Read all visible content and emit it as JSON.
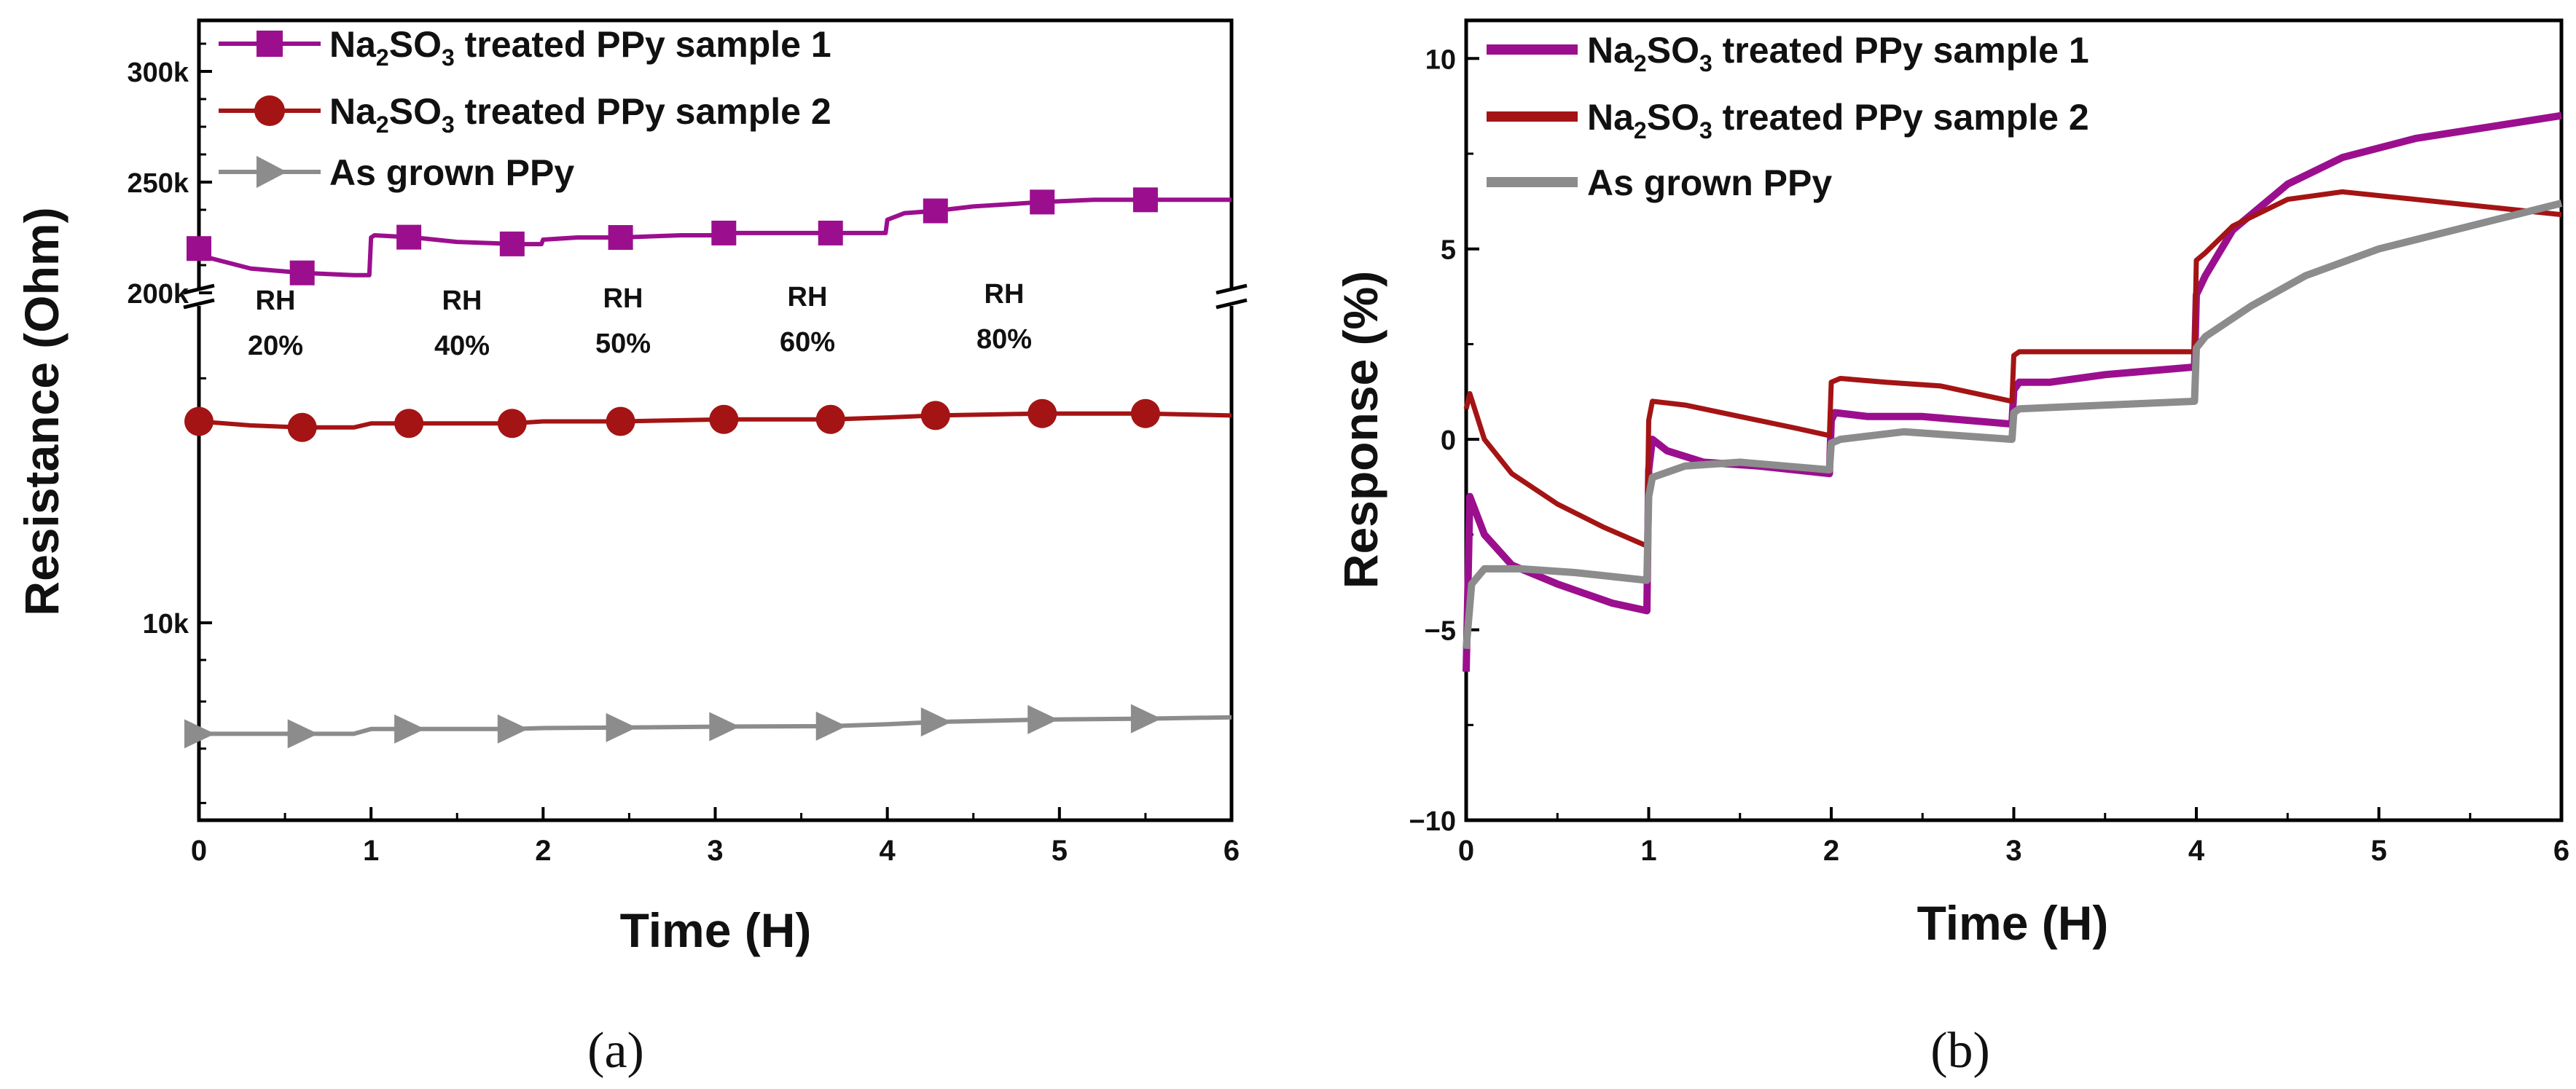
{
  "chart_data": [
    {
      "panel": "(a)",
      "type": "line",
      "xlabel": "Time (H)",
      "ylabel": "Resistance (Ohm)",
      "xlim": [
        0,
        6
      ],
      "xticks": [
        "0",
        "1",
        "2",
        "3",
        "4",
        "5",
        "6"
      ],
      "y_axis": {
        "broken": true,
        "upper_segment": {
          "range": [
            200000,
            330000
          ],
          "ticks": [
            "200k",
            "250k",
            "300k"
          ],
          "tick_values": [
            200000,
            250000,
            300000
          ]
        },
        "lower_segment": {
          "scale": "log",
          "ticks": [
            "10k"
          ],
          "tick_values": [
            10000
          ]
        }
      },
      "annotations": [
        {
          "line1": "RH",
          "line2": "20%"
        },
        {
          "line1": "RH",
          "line2": "40%"
        },
        {
          "line1": "RH",
          "line2": "50%"
        },
        {
          "line1": "RH",
          "line2": "60%"
        },
        {
          "line1": "RH",
          "line2": "80%"
        }
      ],
      "legend": "top-left",
      "series": [
        {
          "name": "Na2SO3 treated PPy sample 1",
          "color": "#9b0f8e",
          "marker": "square",
          "segment": "upper",
          "x": [
            0,
            0.05,
            0.3,
            0.6,
            0.9,
            0.99,
            1.0,
            1.02,
            1.25,
            1.5,
            1.85,
            1.99,
            2.0,
            2.2,
            2.45,
            2.8,
            2.99,
            3.0,
            3.05,
            3.4,
            3.67,
            3.95,
            3.99,
            4.0,
            4.1,
            4.28,
            4.5,
            4.9,
            5.2,
            5.5,
            6.0
          ],
          "values": [
            220000,
            216000,
            211000,
            209000,
            208000,
            208000,
            225000,
            226000,
            225000,
            223000,
            222000,
            222000,
            224000,
            225000,
            225000,
            226000,
            226000,
            227000,
            227000,
            227000,
            227000,
            227000,
            227000,
            233000,
            236000,
            237000,
            239000,
            241000,
            242000,
            242000,
            242000
          ]
        },
        {
          "name": "Na2SO3 treated PPy sample 2",
          "color": "#a41414",
          "marker": "circle",
          "segment": "lower",
          "x": [
            0,
            0.3,
            0.6,
            0.9,
            1.0,
            1.22,
            1.5,
            1.82,
            2.0,
            2.45,
            3.05,
            3.67,
            4.0,
            4.28,
            4.9,
            5.5,
            6.0
          ],
          "values": [
            17700,
            17500,
            17400,
            17400,
            17600,
            17600,
            17600,
            17600,
            17700,
            17700,
            17800,
            17800,
            17900,
            18000,
            18100,
            18100,
            18000
          ]
        },
        {
          "name": "As grown PPy",
          "color": "#8c8c8c",
          "marker": "triangle-right",
          "segment": "lower",
          "x": [
            0,
            0.3,
            0.6,
            0.9,
            1.0,
            1.22,
            1.5,
            1.82,
            2.0,
            2.45,
            3.05,
            3.67,
            4.0,
            4.28,
            4.9,
            5.5,
            6.0
          ],
          "values": [
            7300,
            7300,
            7300,
            7300,
            7400,
            7400,
            7400,
            7400,
            7420,
            7430,
            7450,
            7460,
            7500,
            7550,
            7600,
            7620,
            7650
          ]
        }
      ]
    },
    {
      "panel": "(b)",
      "type": "line",
      "xlabel": "Time (H)",
      "ylabel": "Response (%)",
      "xlim": [
        0,
        6
      ],
      "ylim": [
        -10,
        11
      ],
      "xticks": [
        "0",
        "1",
        "2",
        "3",
        "4",
        "5",
        "6"
      ],
      "yticks": [
        "−10",
        "−5",
        "0",
        "5",
        "10"
      ],
      "ytick_values": [
        -10,
        -5,
        0,
        5,
        10
      ],
      "legend": "top-left",
      "series": [
        {
          "name": "Na2SO3 treated PPy sample 1",
          "color": "#9b0f8e",
          "x": [
            0,
            0.02,
            0.1,
            0.25,
            0.5,
            0.8,
            0.99,
            1.0,
            1.02,
            1.1,
            1.3,
            1.6,
            1.99,
            2.0,
            2.02,
            2.2,
            2.5,
            2.99,
            3.0,
            3.03,
            3.2,
            3.5,
            3.99,
            4.0,
            4.05,
            4.2,
            4.5,
            4.8,
            5.2,
            5.6,
            6.0
          ],
          "values": [
            -6.1,
            -1.5,
            -2.5,
            -3.3,
            -3.8,
            -4.3,
            -4.5,
            -0.8,
            0,
            -0.3,
            -0.6,
            -0.7,
            -0.9,
            0.5,
            0.7,
            0.6,
            0.6,
            0.4,
            1.3,
            1.5,
            1.5,
            1.7,
            1.9,
            3.8,
            4.3,
            5.5,
            6.7,
            7.4,
            7.9,
            8.2,
            8.5
          ]
        },
        {
          "name": "Na2SO3 treated PPy sample 2",
          "color": "#a41414",
          "x": [
            0,
            0.02,
            0.1,
            0.25,
            0.5,
            0.75,
            0.99,
            1.0,
            1.02,
            1.2,
            1.5,
            1.8,
            1.99,
            2.0,
            2.05,
            2.3,
            2.6,
            2.99,
            3.0,
            3.03,
            3.4,
            3.99,
            4.0,
            4.05,
            4.2,
            4.5,
            4.8,
            5.2,
            5.6,
            6.0
          ],
          "values": [
            0.8,
            1.2,
            0,
            -0.9,
            -1.7,
            -2.3,
            -2.8,
            0.5,
            1.0,
            0.9,
            0.6,
            0.3,
            0.1,
            1.5,
            1.6,
            1.5,
            1.4,
            1.0,
            2.2,
            2.3,
            2.3,
            2.3,
            4.7,
            4.9,
            5.6,
            6.3,
            6.5,
            6.3,
            6.1,
            5.9
          ]
        },
        {
          "name": "As grown PPy",
          "color": "#8c8c8c",
          "x": [
            0,
            0.03,
            0.1,
            0.3,
            0.6,
            0.99,
            1.0,
            1.02,
            1.2,
            1.5,
            1.99,
            2.0,
            2.05,
            2.4,
            2.99,
            3.0,
            3.03,
            3.5,
            3.99,
            4.0,
            4.05,
            4.3,
            4.6,
            5.0,
            5.5,
            6.0
          ],
          "values": [
            -5.5,
            -3.8,
            -3.4,
            -3.4,
            -3.5,
            -3.7,
            -1.5,
            -1.0,
            -0.7,
            -0.6,
            -0.8,
            -0.1,
            0,
            0.2,
            0,
            0.7,
            0.8,
            0.9,
            1.0,
            2.4,
            2.7,
            3.5,
            4.3,
            5.0,
            5.6,
            6.2
          ]
        }
      ]
    }
  ],
  "legend": {
    "s1": {
      "pre": "Na",
      "sub1": "2",
      "mid": "SO",
      "sub2": "3",
      "post": " treated PPy sample 1"
    },
    "s2": {
      "pre": "Na",
      "sub1": "2",
      "mid": "SO",
      "sub2": "3",
      "post": " treated PPy sample 2"
    },
    "s3": {
      "text": "As grown PPy"
    }
  },
  "panel_labels": {
    "a": "(a)",
    "b": "(b)"
  }
}
